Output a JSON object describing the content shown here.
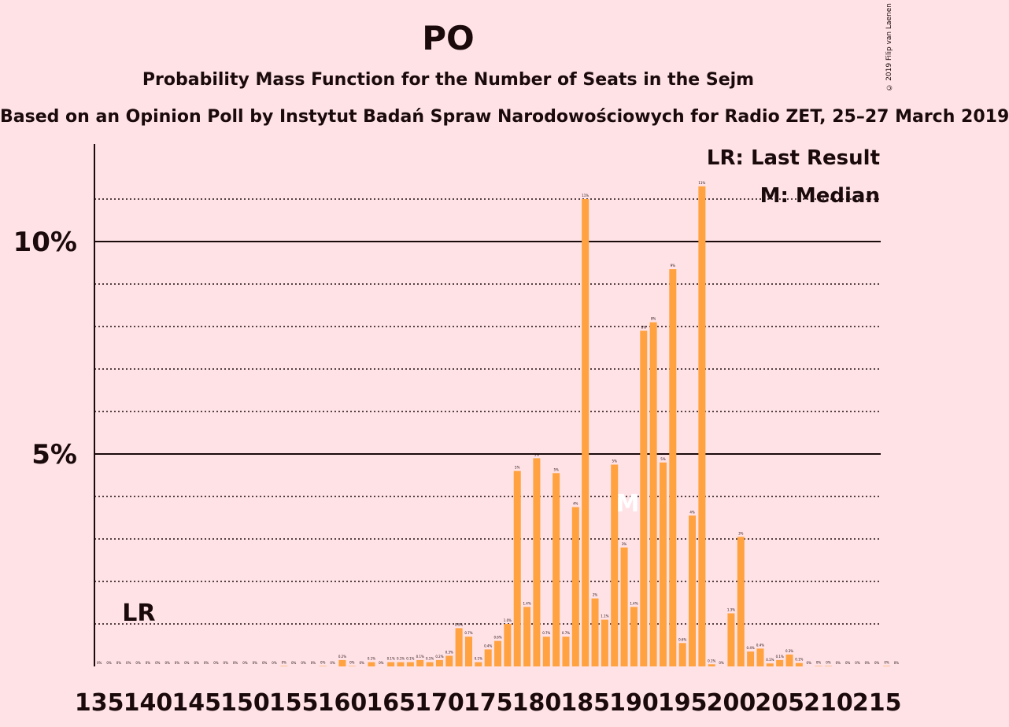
{
  "title": "PO",
  "subtitle": "Probability Mass Function for the Number of Seats in the Sejm",
  "source": "Based on an Opinion Poll by Instytut Badań Spraw Narodowościowych for Radio ZET, 25–27 March 2019",
  "copyright": "© 2019 Filip van Laenen",
  "legend": {
    "last_result": "LR: Last Result",
    "median": "M: Median"
  },
  "markers": {
    "last_result_label": "LR",
    "median_label": "M",
    "last_result_seat": 138,
    "median_seat": 190
  },
  "colors": {
    "background": "#ffe2e6",
    "bar": "#ffa23f",
    "text": "#1a0a0c"
  },
  "chart_data": {
    "type": "bar",
    "title": "PO",
    "xlabel": "",
    "ylabel": "",
    "ylim": [
      0,
      12.3
    ],
    "yticks": [
      {
        "value": 5,
        "label": "5%"
      },
      {
        "value": 10,
        "label": "10%"
      }
    ],
    "xtick_labels": [
      "135",
      "140",
      "145",
      "150",
      "155",
      "160",
      "165",
      "170",
      "175",
      "180",
      "185",
      "190",
      "195",
      "200",
      "205",
      "210",
      "215"
    ],
    "x_start": 135,
    "values": [
      0,
      0,
      0,
      0,
      0,
      0,
      0,
      0,
      0,
      0,
      0,
      0,
      0,
      0,
      0,
      0,
      0,
      0,
      0,
      0.01,
      0,
      0,
      0,
      0.01,
      0,
      0.15,
      0.01,
      0,
      0.1,
      0,
      0.1,
      0.1,
      0.1,
      0.15,
      0.1,
      0.15,
      0.25,
      0.9,
      0.7,
      0.1,
      0.4,
      0.6,
      1.0,
      4.6,
      1.4,
      4.9,
      0.7,
      4.55,
      0.7,
      3.75,
      11.0,
      1.6,
      1.1,
      4.75,
      2.8,
      1.4,
      7.9,
      8.1,
      4.8,
      9.35,
      0.55,
      3.55,
      11.3,
      0.05,
      0,
      1.25,
      3.05,
      0.35,
      0.42,
      0.07,
      0.15,
      0.28,
      0.08,
      0,
      0.01,
      0.01,
      0,
      0,
      0,
      0,
      0,
      0.01,
      0
    ],
    "value_labels": [
      "0%",
      "0%",
      "0%",
      "0%",
      "0%",
      "0%",
      "0%",
      "0%",
      "0%",
      "0%",
      "0%",
      "0%",
      "0%",
      "0%",
      "0%",
      "0%",
      "0%",
      "0%",
      "0%",
      "0%",
      "0%",
      "0%",
      "0%",
      "0%",
      "0%",
      "0.2%",
      "0%",
      "0%",
      "0.1%",
      "0%",
      "0.1%",
      "0.1%",
      "0.1%",
      "0.1%",
      "0.1%",
      "0.2%",
      "0.3%",
      "0.9%",
      "0.7%",
      "0.1%",
      "0.4%",
      "0.6%",
      "1.0%",
      "5%",
      "1.4%",
      "5%",
      "0.7%",
      "5%",
      "0.7%",
      "4%",
      "11%",
      "2%",
      "1.1%",
      "5%",
      "3%",
      "1.4%",
      "8%",
      "8%",
      "5%",
      "9%",
      "0.6%",
      "4%",
      "11%",
      "0.1%",
      "0%",
      "1.3%",
      "3%",
      "0.4%",
      "0.4%",
      "0.1%",
      "0.1%",
      "0.3%",
      "0.1%",
      "0%",
      "0%",
      "0%",
      "0%",
      "0%",
      "0%",
      "0%",
      "0%",
      "0%",
      "0%"
    ]
  }
}
